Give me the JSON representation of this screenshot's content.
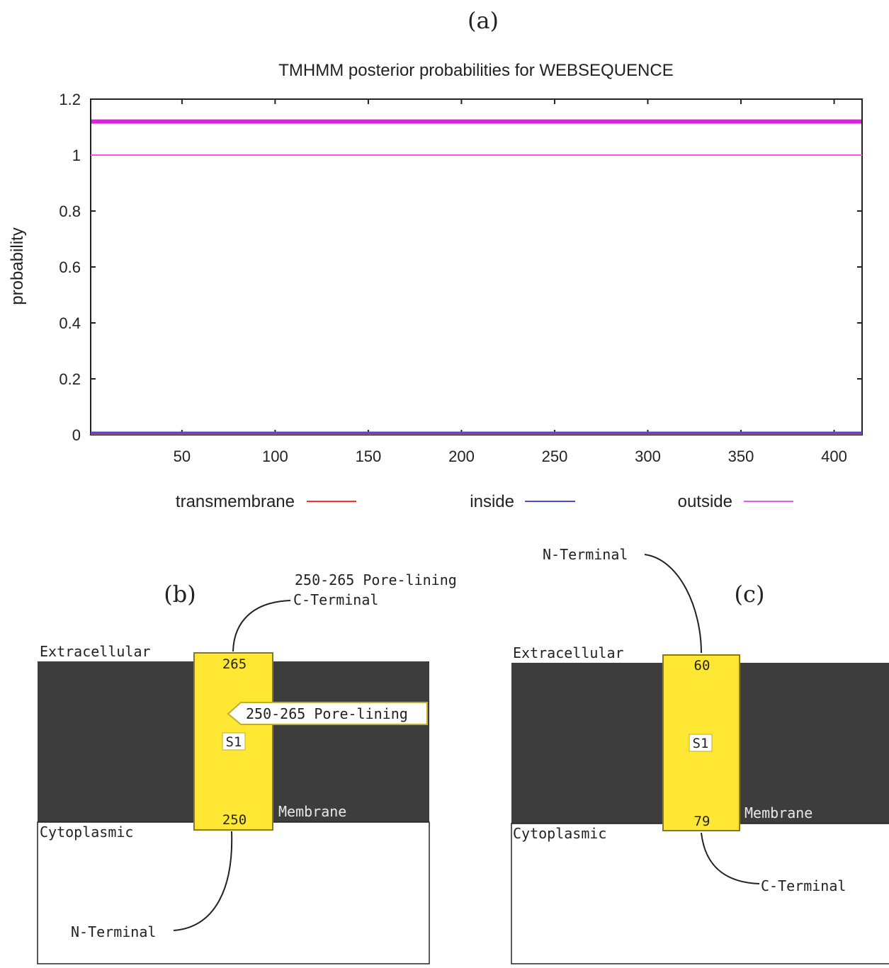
{
  "panel_labels": {
    "a": "(a)",
    "b": "(b)",
    "c": "(c)"
  },
  "chart_data": {
    "type": "line",
    "title": "TMHMM posterior probabilities for WEBSEQUENCE",
    "xlabel": "",
    "ylabel": "probability",
    "xlim": [
      1,
      415
    ],
    "ylim": [
      0,
      1.2
    ],
    "xticks": [
      50,
      100,
      150,
      200,
      250,
      300,
      350,
      400
    ],
    "yticks": [
      0,
      0.2,
      0.4,
      0.6,
      0.8,
      1,
      1.2
    ],
    "ytick_labels": [
      "0",
      "0.2",
      "0.4",
      "0.6",
      "0.8",
      "1",
      "1.2"
    ],
    "grid": false,
    "legend_position": "bottom",
    "series": [
      {
        "name": "transmembrane",
        "color": "#ff3030",
        "x": [
          1,
          415
        ],
        "y": [
          0,
          0
        ]
      },
      {
        "name": "inside",
        "color": "#4a4ad8",
        "x": [
          1,
          415
        ],
        "y": [
          0,
          0
        ]
      },
      {
        "name": "outside",
        "color": "#ee55ee",
        "x": [
          1,
          415
        ],
        "y": [
          1,
          1
        ]
      }
    ],
    "bar_series": {
      "color": "#dd22dd",
      "y": 1.12
    }
  },
  "diagram_b": {
    "extracellular": "Extracellular",
    "cytoplasmic": "Cytoplasmic",
    "membrane": "Membrane",
    "helix_label": "S1",
    "top_number": "265",
    "bottom_number": "250",
    "pore_label": "250-265 Pore-lining",
    "pore_callout": "250-265 Pore-lining",
    "top_terminal": "C-Terminal",
    "bottom_terminal": "N-Terminal"
  },
  "diagram_c": {
    "extracellular": "Extracellular",
    "cytoplasmic": "Cytoplasmic",
    "membrane": "Membrane",
    "helix_label": "S1",
    "top_number": "60",
    "bottom_number": "79",
    "top_terminal": "N-Terminal",
    "bottom_terminal": "C-Terminal"
  },
  "colors": {
    "membrane": "#3d3d3d",
    "helix": "#ffe733",
    "helix_border": "#8a7a10"
  }
}
